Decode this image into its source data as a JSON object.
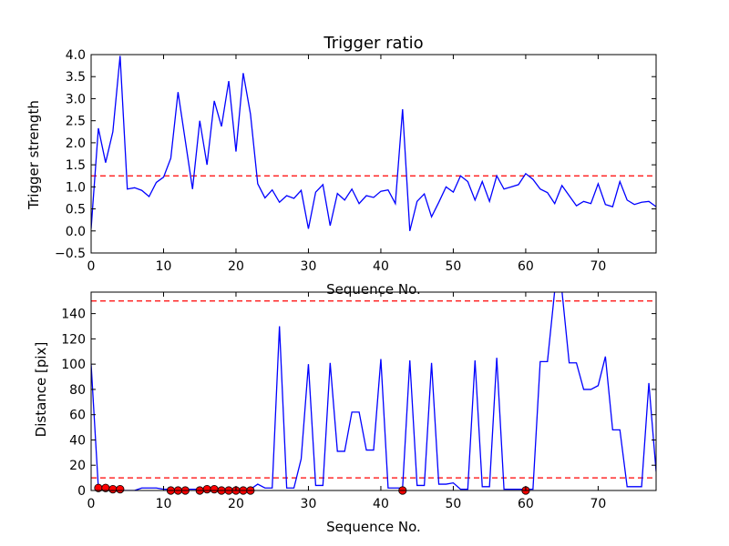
{
  "chart_data": [
    {
      "type": "line",
      "title": "Trigger ratio",
      "xlabel": "Sequence No.",
      "ylabel": "Trigger strength",
      "xlim": [
        0,
        78
      ],
      "ylim": [
        -0.5,
        4.0
      ],
      "xticks": [
        0,
        10,
        20,
        30,
        40,
        50,
        60,
        70
      ],
      "yticks": [
        -0.5,
        0.0,
        0.5,
        1.0,
        1.5,
        2.0,
        2.5,
        3.0,
        3.5,
        4.0
      ],
      "ytick_labels": [
        "−0.5",
        "0.0",
        "0.5",
        "1.0",
        "1.5",
        "2.0",
        "2.5",
        "3.0",
        "3.5",
        "4.0"
      ],
      "grid": false,
      "threshold_lines": [
        1.25
      ],
      "series": [
        {
          "color": "#0000ff",
          "x": [
            0,
            1,
            2,
            3,
            4,
            5,
            6,
            7,
            8,
            9,
            10,
            11,
            12,
            13,
            14,
            15,
            16,
            17,
            18,
            19,
            20,
            21,
            22,
            23,
            24,
            25,
            26,
            27,
            28,
            29,
            30,
            31,
            32,
            33,
            34,
            35,
            36,
            37,
            38,
            39,
            40,
            41,
            42,
            43,
            44,
            45,
            46,
            47,
            48,
            49,
            50,
            51,
            52,
            53,
            54,
            55,
            56,
            57,
            58,
            59,
            60,
            61,
            62,
            63,
            64,
            65,
            66,
            67,
            68,
            69,
            70,
            71,
            72,
            73,
            74,
            75,
            76,
            77,
            78
          ],
          "values": [
            0.05,
            2.33,
            1.55,
            2.25,
            3.97,
            0.95,
            0.98,
            0.92,
            0.78,
            1.1,
            1.22,
            1.65,
            3.15,
            2.05,
            0.95,
            2.5,
            1.5,
            2.95,
            2.37,
            3.4,
            1.8,
            3.58,
            2.65,
            1.07,
            0.75,
            0.93,
            0.65,
            0.8,
            0.74,
            0.92,
            0.05,
            0.88,
            1.05,
            0.12,
            0.85,
            0.7,
            0.95,
            0.62,
            0.8,
            0.76,
            0.9,
            0.93,
            0.62,
            2.76,
            0.0,
            0.67,
            0.84,
            0.32,
            0.65,
            1.0,
            0.88,
            1.25,
            1.12,
            0.7,
            1.12,
            0.67,
            1.25,
            0.95,
            1.0,
            1.05,
            1.3,
            1.17,
            0.95,
            0.87,
            0.62,
            1.03,
            0.8,
            0.57,
            0.67,
            0.62,
            1.07,
            0.6,
            0.55,
            1.12,
            0.7,
            0.6,
            0.65,
            0.67,
            0.55
          ]
        }
      ]
    },
    {
      "type": "line",
      "title": "",
      "xlabel": "Sequence No.",
      "ylabel": "Distance [pix]",
      "xlim": [
        0,
        78
      ],
      "ylim": [
        0,
        157
      ],
      "xticks": [
        0,
        10,
        20,
        30,
        40,
        50,
        60,
        70
      ],
      "yticks": [
        0,
        20,
        40,
        60,
        80,
        100,
        120,
        140
      ],
      "grid": false,
      "threshold_lines": [
        10,
        150
      ],
      "series": [
        {
          "color": "#0000ff",
          "x": [
            0,
            1,
            2,
            3,
            4,
            5,
            6,
            7,
            8,
            9,
            10,
            11,
            12,
            13,
            14,
            15,
            16,
            17,
            18,
            19,
            20,
            21,
            22,
            23,
            24,
            25,
            26,
            27,
            28,
            29,
            30,
            31,
            32,
            33,
            34,
            35,
            36,
            37,
            38,
            39,
            40,
            41,
            42,
            43,
            44,
            45,
            46,
            47,
            48,
            49,
            50,
            51,
            52,
            53,
            54,
            55,
            56,
            57,
            58,
            59,
            60,
            61,
            62,
            63,
            64,
            65,
            66,
            67,
            68,
            69,
            70,
            71,
            72,
            73,
            74,
            75,
            76,
            77,
            78
          ],
          "values": [
            100,
            2,
            2,
            1,
            0,
            0,
            0,
            2,
            2,
            2,
            1,
            1,
            1,
            1,
            1,
            1,
            1,
            1,
            1,
            1,
            1,
            1,
            1,
            5,
            2,
            2,
            130,
            2,
            2,
            25,
            100,
            4,
            4,
            101,
            31,
            31,
            62,
            62,
            32,
            32,
            104,
            2,
            2,
            2,
            103,
            4,
            4,
            101,
            5,
            5,
            6,
            1,
            1,
            103,
            3,
            3,
            105,
            1,
            1,
            1,
            1,
            1,
            102,
            102,
            158,
            158,
            101,
            101,
            80,
            80,
            83,
            106,
            48,
            48,
            3,
            3,
            3,
            85,
            15
          ]
        }
      ],
      "marker_points": {
        "color": "#ff0000",
        "x": [
          1,
          2,
          3,
          4,
          11,
          12,
          13,
          15,
          16,
          17,
          18,
          19,
          20,
          21,
          22,
          43,
          60
        ],
        "values": [
          2,
          2,
          1,
          1,
          0,
          0,
          0,
          0,
          1,
          1,
          0,
          0,
          0,
          0,
          0,
          0,
          0
        ]
      }
    }
  ]
}
